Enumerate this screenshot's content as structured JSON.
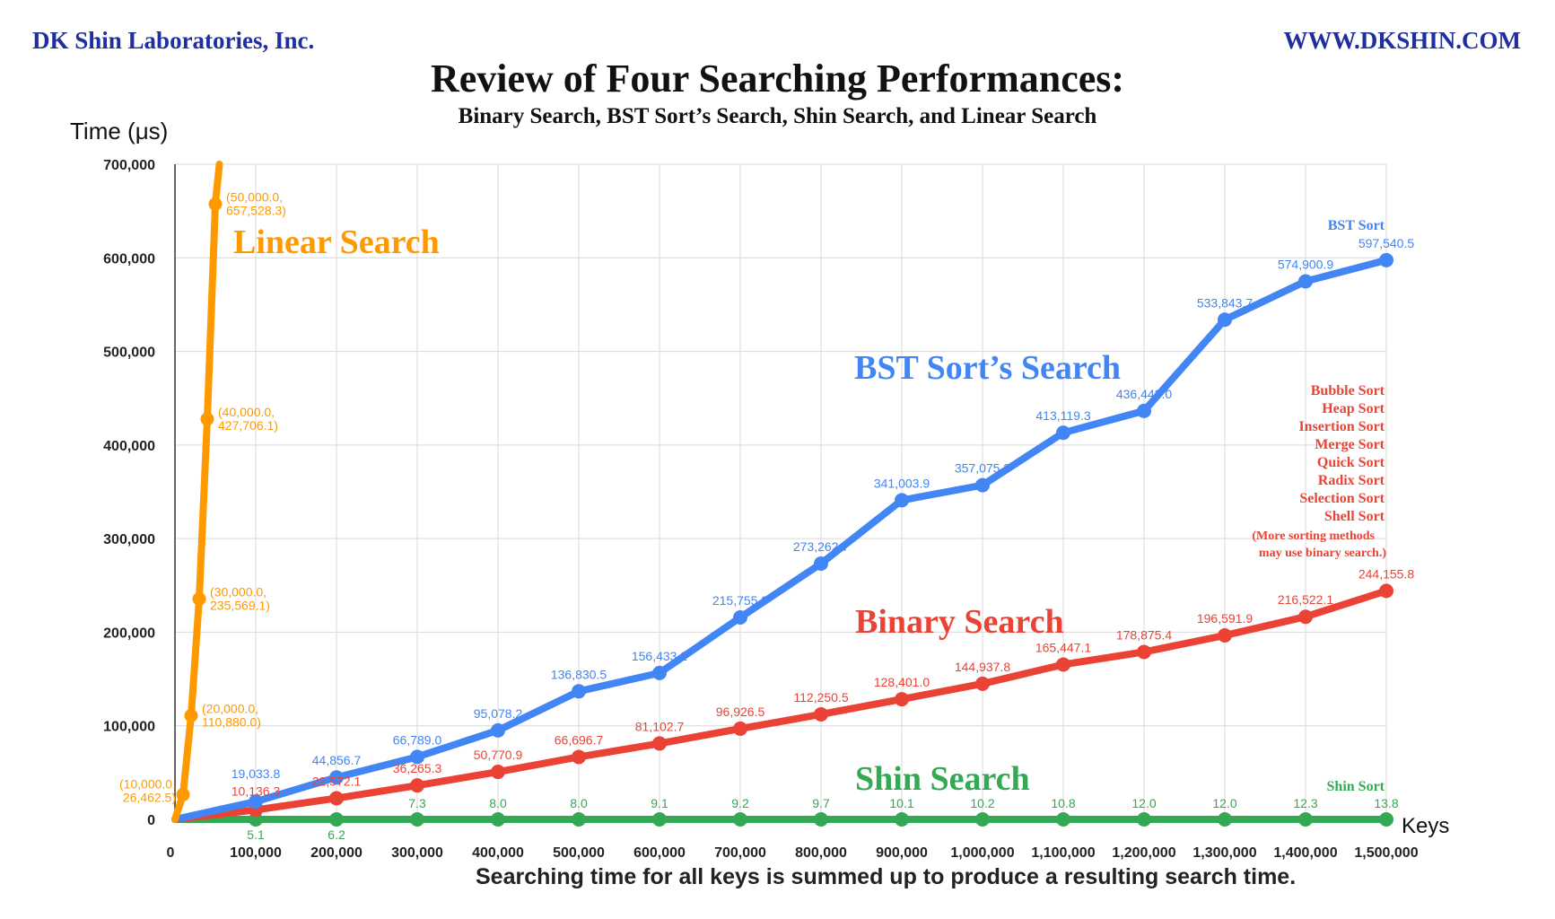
{
  "header": {
    "company": "DK Shin Laboratories, Inc.",
    "website": "WWW.DKSHIN.COM",
    "title": "Review of Four Searching Performances:",
    "subtitle": "Binary Search, BST Sort’s Search, Shin Search, and Linear Search"
  },
  "footnote": "Searching time for all keys is summed up to produce a resulting search time.",
  "chart_data": {
    "type": "line",
    "ylabel": "Time (μs)",
    "xlabel": "Keys",
    "xlim": [
      0,
      1500000
    ],
    "ylim": [
      0,
      700000
    ],
    "grid": true,
    "x_ticks": [
      "0",
      "100,000",
      "200,000",
      "300,000",
      "400,000",
      "500,000",
      "600,000",
      "700,000",
      "800,000",
      "900,000",
      "1,000,000",
      "1,100,000",
      "1,200,000",
      "1,300,000",
      "1,400,000",
      "1,500,000"
    ],
    "y_ticks": [
      "0",
      "100,000",
      "200,000",
      "300,000",
      "400,000",
      "500,000",
      "600,000",
      "700,000"
    ],
    "series": [
      {
        "key": "linear",
        "name": "Linear Search",
        "color": "#ff9900",
        "points": [
          {
            "x": 0,
            "y": 0
          },
          {
            "x": 10000,
            "y": 26462.5,
            "label": "(10,000.0,\n26,462.5)"
          },
          {
            "x": 20000,
            "y": 110880.0,
            "label": "(20,000.0,\n110,880.0)"
          },
          {
            "x": 30000,
            "y": 235569.1,
            "label": "(30,000.0,\n235,569.1)"
          },
          {
            "x": 40000,
            "y": 427706.1,
            "label": "(40,000.0,\n427,706.1)"
          },
          {
            "x": 50000,
            "y": 657528.3,
            "label": "(50,000.0,\n657,528.3)"
          },
          {
            "x": 55000,
            "y": 700000
          }
        ]
      },
      {
        "key": "bst",
        "name": "BST Sort’s Search",
        "color": "#4285f4",
        "end_label": "BST Sort",
        "points": [
          {
            "x": 0,
            "y": 0
          },
          {
            "x": 100000,
            "y": 19033.8,
            "label": "19,033.8"
          },
          {
            "x": 200000,
            "y": 44856.7,
            "label": "44,856.7"
          },
          {
            "x": 300000,
            "y": 66789.0,
            "label": "66,789.0"
          },
          {
            "x": 400000,
            "y": 95078.2,
            "label": "95,078.2"
          },
          {
            "x": 500000,
            "y": 136830.5,
            "label": "136,830.5"
          },
          {
            "x": 600000,
            "y": 156433.2,
            "label": "156,433.2"
          },
          {
            "x": 700000,
            "y": 215755.9,
            "label": "215,755.9"
          },
          {
            "x": 800000,
            "y": 273262.7,
            "label": "273,262.7"
          },
          {
            "x": 900000,
            "y": 341003.9,
            "label": "341,003.9"
          },
          {
            "x": 1000000,
            "y": 357075.8,
            "label": "357,075.8"
          },
          {
            "x": 1100000,
            "y": 413119.3,
            "label": "413,119.3"
          },
          {
            "x": 1200000,
            "y": 436443.0,
            "label": "436,443.0"
          },
          {
            "x": 1300000,
            "y": 533843.7,
            "label": "533,843.7"
          },
          {
            "x": 1400000,
            "y": 574900.9,
            "label": "574,900.9"
          },
          {
            "x": 1500000,
            "y": 597540.5,
            "label": "597,540.5"
          }
        ]
      },
      {
        "key": "binary",
        "name": "Binary Search",
        "color": "#ea4335",
        "end_labels": [
          "Bubble Sort",
          "Heap Sort",
          "Insertion Sort",
          "Merge Sort",
          "Quick Sort",
          "Radix Sort",
          "Selection Sort",
          "Shell Sort",
          "(More sorting methods",
          "may use binary search.)"
        ],
        "points": [
          {
            "x": 0,
            "y": 0
          },
          {
            "x": 100000,
            "y": 10136.3,
            "label": "10,136.3"
          },
          {
            "x": 200000,
            "y": 22572.1,
            "label": "22,572.1"
          },
          {
            "x": 300000,
            "y": 36265.3,
            "label": "36,265.3"
          },
          {
            "x": 400000,
            "y": 50770.9,
            "label": "50,770.9"
          },
          {
            "x": 500000,
            "y": 66696.7,
            "label": "66,696.7"
          },
          {
            "x": 600000,
            "y": 81102.7,
            "label": "81,102.7"
          },
          {
            "x": 700000,
            "y": 96926.5,
            "label": "96,926.5"
          },
          {
            "x": 800000,
            "y": 112250.5,
            "label": "112,250.5"
          },
          {
            "x": 900000,
            "y": 128401.0,
            "label": "128,401.0"
          },
          {
            "x": 1000000,
            "y": 144937.8,
            "label": "144,937.8"
          },
          {
            "x": 1100000,
            "y": 165447.1,
            "label": "165,447.1"
          },
          {
            "x": 1200000,
            "y": 178875.4,
            "label": "178,875.4"
          },
          {
            "x": 1300000,
            "y": 196591.9,
            "label": "196,591.9"
          },
          {
            "x": 1400000,
            "y": 216522.1,
            "label": "216,522.1"
          },
          {
            "x": 1500000,
            "y": 244155.8,
            "label": "244,155.8"
          }
        ]
      },
      {
        "key": "shin",
        "name": "Shin Search",
        "color": "#34a853",
        "end_label": "Shin Sort",
        "points": [
          {
            "x": 0,
            "y": 0
          },
          {
            "x": 100000,
            "y": 5.1,
            "label": "5.1",
            "below": true
          },
          {
            "x": 200000,
            "y": 6.2,
            "label": "6.2",
            "below": true
          },
          {
            "x": 300000,
            "y": 7.3,
            "label": "7.3"
          },
          {
            "x": 400000,
            "y": 8.0,
            "label": "8.0"
          },
          {
            "x": 500000,
            "y": 8.0,
            "label": "8.0"
          },
          {
            "x": 600000,
            "y": 9.1,
            "label": "9.1"
          },
          {
            "x": 700000,
            "y": 9.2,
            "label": "9.2"
          },
          {
            "x": 800000,
            "y": 9.7,
            "label": "9.7"
          },
          {
            "x": 900000,
            "y": 10.1,
            "label": "10.1"
          },
          {
            "x": 1000000,
            "y": 10.2,
            "label": "10.2"
          },
          {
            "x": 1100000,
            "y": 10.8,
            "label": "10.8"
          },
          {
            "x": 1200000,
            "y": 12.0,
            "label": "12.0"
          },
          {
            "x": 1300000,
            "y": 12.0,
            "label": "12.0"
          },
          {
            "x": 1400000,
            "y": 12.3,
            "label": "12.3"
          },
          {
            "x": 1500000,
            "y": 13.8,
            "label": "13.8"
          }
        ]
      }
    ]
  }
}
